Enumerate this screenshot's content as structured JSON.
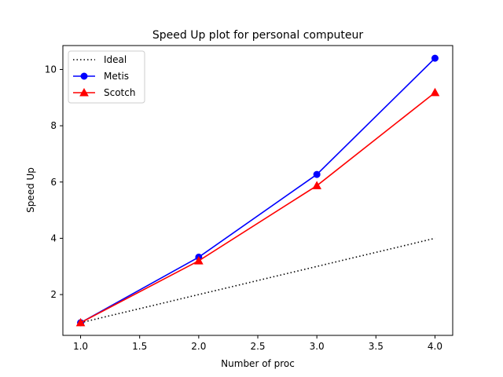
{
  "chart_data": {
    "type": "line",
    "title": "Speed Up plot for personal computeur",
    "xlabel": "Number of proc",
    "ylabel": "Speed Up",
    "xlim": [
      0.85,
      4.15
    ],
    "ylim": [
      0.55,
      10.85
    ],
    "xticks": [
      1.0,
      1.5,
      2.0,
      2.5,
      3.0,
      3.5,
      4.0
    ],
    "xtick_labels": [
      "1.0",
      "1.5",
      "2.0",
      "2.5",
      "3.0",
      "3.5",
      "4.0"
    ],
    "yticks": [
      2,
      4,
      6,
      8,
      10
    ],
    "ytick_labels": [
      "2",
      "4",
      "6",
      "8",
      "10"
    ],
    "grid": false,
    "legend_position": "top-left",
    "series": [
      {
        "name": "Ideal",
        "x": [
          1,
          2,
          3,
          4
        ],
        "values": [
          1.0,
          2.0,
          3.0,
          4.0
        ],
        "color": "#000000",
        "line_style": "dotted",
        "marker": "none"
      },
      {
        "name": "Metis",
        "x": [
          1,
          2,
          3,
          4
        ],
        "values": [
          1.0,
          3.33,
          6.27,
          10.4
        ],
        "color": "#0000ff",
        "line_style": "solid",
        "marker": "circle"
      },
      {
        "name": "Scotch",
        "x": [
          1,
          2,
          3,
          4
        ],
        "values": [
          1.0,
          3.2,
          5.87,
          9.18
        ],
        "color": "#ff0000",
        "line_style": "solid",
        "marker": "triangle"
      }
    ]
  }
}
